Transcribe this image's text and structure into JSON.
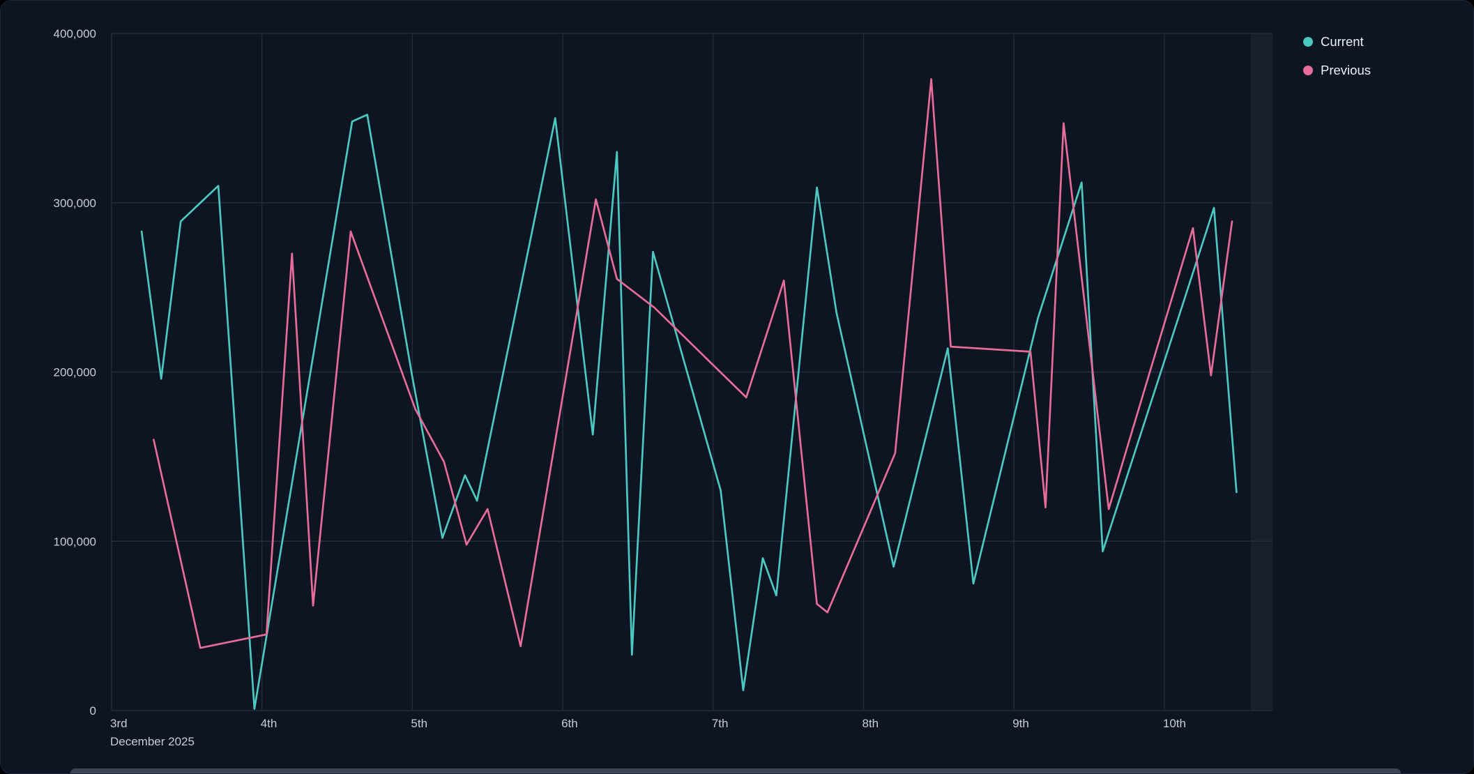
{
  "legend": {
    "items": [
      {
        "label": "Current",
        "color": "#4CC8C0"
      },
      {
        "label": "Previous",
        "color": "#E66D99"
      }
    ]
  },
  "chart_data": {
    "type": "line",
    "title": "",
    "x_axis": {
      "unit": "day of month",
      "tick_values": [
        3,
        4,
        5,
        6,
        7,
        8,
        9,
        10
      ],
      "tick_labels": [
        "3rd",
        "4th",
        "5th",
        "6th",
        "7th",
        "8th",
        "9th",
        "10th"
      ],
      "context_label": "December 2025",
      "range": [
        3,
        10.72
      ]
    },
    "y_axis": {
      "tick_values": [
        0,
        100000,
        200000,
        300000,
        400000
      ],
      "tick_labels": [
        "0",
        "100,000",
        "200,000",
        "300,000",
        "400,000"
      ],
      "range": [
        0,
        400000
      ]
    },
    "grid": true,
    "legend_position": "top-right",
    "highlight_band": {
      "from": 10.575,
      "to": 10.72
    },
    "series": [
      {
        "name": "Current",
        "color": "#4CC8C0",
        "points": [
          [
            3.2,
            283000
          ],
          [
            3.33,
            196000
          ],
          [
            3.46,
            289000
          ],
          [
            3.71,
            310000
          ],
          [
            3.95,
            1000
          ],
          [
            4.6,
            348000
          ],
          [
            4.7,
            352000
          ],
          [
            5.0,
            197000
          ],
          [
            5.2,
            102000
          ],
          [
            5.35,
            139000
          ],
          [
            5.43,
            124000
          ],
          [
            5.95,
            350000
          ],
          [
            6.2,
            163000
          ],
          [
            6.36,
            330000
          ],
          [
            6.46,
            33000
          ],
          [
            6.6,
            271000
          ],
          [
            7.05,
            130000
          ],
          [
            7.2,
            12000
          ],
          [
            7.33,
            90000
          ],
          [
            7.42,
            68000
          ],
          [
            7.69,
            309000
          ],
          [
            7.82,
            235000
          ],
          [
            8.2,
            85000
          ],
          [
            8.56,
            214000
          ],
          [
            8.73,
            75000
          ],
          [
            9.16,
            232000
          ],
          [
            9.45,
            312000
          ],
          [
            9.59,
            94000
          ],
          [
            10.33,
            297000
          ],
          [
            10.48,
            129000
          ]
        ]
      },
      {
        "name": "Previous",
        "color": "#E66D99",
        "points": [
          [
            3.28,
            160000
          ],
          [
            3.59,
            37000
          ],
          [
            4.03,
            45000
          ],
          [
            4.2,
            270000
          ],
          [
            4.34,
            62000
          ],
          [
            4.59,
            283000
          ],
          [
            5.02,
            178000
          ],
          [
            5.21,
            147000
          ],
          [
            5.36,
            98000
          ],
          [
            5.5,
            119000
          ],
          [
            5.72,
            38000
          ],
          [
            6.22,
            302000
          ],
          [
            6.36,
            255000
          ],
          [
            6.61,
            238000
          ],
          [
            7.22,
            185000
          ],
          [
            7.47,
            254000
          ],
          [
            7.69,
            63000
          ],
          [
            7.76,
            58000
          ],
          [
            8.21,
            152000
          ],
          [
            8.45,
            373000
          ],
          [
            8.58,
            215000
          ],
          [
            9.11,
            212000
          ],
          [
            9.21,
            120000
          ],
          [
            9.33,
            347000
          ],
          [
            9.63,
            119000
          ],
          [
            10.19,
            285000
          ],
          [
            10.31,
            198000
          ],
          [
            10.45,
            289000
          ]
        ]
      }
    ]
  },
  "colors": {
    "background": "#0d1422",
    "card_border": "#1e2636",
    "gridline": "#242b3a",
    "axis_label": "#c7cdd8",
    "legend_text": "#eef1f5",
    "highlight_band": "rgba(255,255,255,0.05)"
  }
}
